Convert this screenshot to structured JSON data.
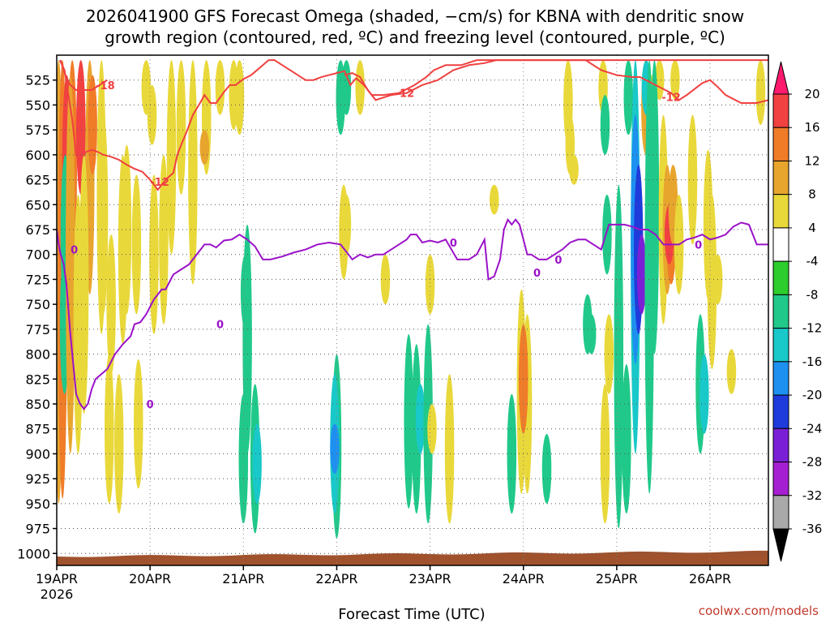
{
  "title_line1": "2026041900 GFS Forecast Omega (shaded, −cm/s) for KBNA with dendritic snow",
  "title_line2": "growth region (contoured, red, ºC) and freezing level (contoured, purple, ºC)",
  "credit": "coolwx.com/models",
  "colors": {
    "dendritic": "#f04040",
    "freezing": "#9b12c8",
    "ground": "#a0522d"
  },
  "chart_data": {
    "type": "heatmap",
    "xlabel": "Forecast Time (UTC)",
    "ylabel": "",
    "x_ticks": [
      {
        "label": "19APR",
        "sub": "2026",
        "hours": 0
      },
      {
        "label": "20APR",
        "hours": 24
      },
      {
        "label": "21APR",
        "hours": 48
      },
      {
        "label": "22APR",
        "hours": 72
      },
      {
        "label": "23APR",
        "hours": 96
      },
      {
        "label": "24APR",
        "hours": 120
      },
      {
        "label": "25APR",
        "hours": 144
      },
      {
        "label": "26APR",
        "hours": 168
      }
    ],
    "x_range_hours": [
      0,
      183
    ],
    "y_ticks": [
      525,
      550,
      575,
      600,
      625,
      650,
      675,
      700,
      725,
      750,
      775,
      800,
      825,
      850,
      875,
      900,
      925,
      950,
      975,
      1000
    ],
    "y_range_hPa": [
      500,
      1012
    ],
    "grid": true,
    "colorbar": {
      "labels": [
        "20",
        "16",
        "12",
        "8",
        "4",
        "-4",
        "-8",
        "-12",
        "-16",
        "-20",
        "-24",
        "-28",
        "-32",
        "-36"
      ],
      "colors": [
        "#ff1a6e",
        "#f24141",
        "#f07c28",
        "#e8a52e",
        "#e9d83a",
        "#ffffff",
        "#2ccd2c",
        "#20c98a",
        "#19c8c8",
        "#1e90f0",
        "#1f3bdc",
        "#7b1fd6",
        "#a61ed1",
        "#a9a9a9",
        "#000000"
      ]
    },
    "omega_regions": [
      {
        "x": 0.5,
        "p0": 505,
        "p1": 950,
        "value": 8
      },
      {
        "x": 1.5,
        "p0": 505,
        "p1": 945,
        "value": 12
      },
      {
        "x": 2.6,
        "p0": 520,
        "p1": 700,
        "value": 16
      },
      {
        "x": 4.0,
        "p0": 505,
        "p1": 720,
        "value": 12
      },
      {
        "x": 3.0,
        "p0": 640,
        "p1": 780,
        "value": -12
      },
      {
        "x": 6.2,
        "p0": 505,
        "p1": 640,
        "value": 16
      },
      {
        "x": 8.5,
        "p0": 505,
        "p1": 740,
        "value": 8
      },
      {
        "x": 9.2,
        "p0": 520,
        "p1": 620,
        "value": 12
      },
      {
        "x": 11.5,
        "p0": 505,
        "p1": 780,
        "value": 4
      },
      {
        "x": 2.2,
        "p0": 600,
        "p1": 760,
        "value": -8
      },
      {
        "x": 2.0,
        "p0": 700,
        "p1": 840,
        "value": -8
      },
      {
        "x": 3.5,
        "p0": 520,
        "p1": 900,
        "value": 8
      },
      {
        "x": 5.5,
        "p0": 640,
        "p1": 900,
        "value": 4
      },
      {
        "x": 7.0,
        "p0": 600,
        "p1": 860,
        "value": 4
      },
      {
        "x": 12.0,
        "p0": 560,
        "p1": 760,
        "value": 4
      },
      {
        "x": 14.0,
        "p0": 680,
        "p1": 820,
        "value": 4
      },
      {
        "x": 17.0,
        "p0": 600,
        "p1": 790,
        "value": 4
      },
      {
        "x": 18.0,
        "p0": 590,
        "p1": 760,
        "value": 4
      },
      {
        "x": 20.5,
        "p0": 620,
        "p1": 760,
        "value": 4
      },
      {
        "x": 23.0,
        "p0": 505,
        "p1": 560,
        "value": 4
      },
      {
        "x": 25.0,
        "p0": 620,
        "p1": 780,
        "value": 4
      },
      {
        "x": 27.5,
        "p0": 600,
        "p1": 770,
        "value": 4
      },
      {
        "x": 29.5,
        "p0": 505,
        "p1": 700,
        "value": 4
      },
      {
        "x": 32.0,
        "p0": 505,
        "p1": 640,
        "value": 4
      },
      {
        "x": 35.0,
        "p0": 505,
        "p1": 730,
        "value": 4
      },
      {
        "x": 38.5,
        "p0": 505,
        "p1": 620,
        "value": 4
      },
      {
        "x": 38.0,
        "p0": 575,
        "p1": 610,
        "value": 8
      },
      {
        "x": 42.0,
        "p0": 505,
        "p1": 560,
        "value": 4
      },
      {
        "x": 45.5,
        "p0": 505,
        "p1": 575,
        "value": 4
      },
      {
        "x": 47.0,
        "p0": 505,
        "p1": 580,
        "value": 4
      },
      {
        "x": 13.5,
        "p0": 800,
        "p1": 950,
        "value": 4
      },
      {
        "x": 16.0,
        "p0": 820,
        "p1": 960,
        "value": 4
      },
      {
        "x": 21.0,
        "p0": 805,
        "p1": 935,
        "value": 4
      },
      {
        "x": 24.5,
        "p0": 530,
        "p1": 590,
        "value": 4
      },
      {
        "x": 49.0,
        "p0": 670,
        "p1": 900,
        "value": -8
      },
      {
        "x": 48.5,
        "p0": 700,
        "p1": 775,
        "value": -8
      },
      {
        "x": 73.0,
        "p0": 505,
        "p1": 580,
        "value": -8
      },
      {
        "x": 74.5,
        "p0": 505,
        "p1": 560,
        "value": -8
      },
      {
        "x": 73.8,
        "p0": 630,
        "p1": 725,
        "value": 4
      },
      {
        "x": 74.5,
        "p0": 640,
        "p1": 700,
        "value": 4
      },
      {
        "x": 78.0,
        "p0": 505,
        "p1": 560,
        "value": 4
      },
      {
        "x": 84.5,
        "p0": 700,
        "p1": 750,
        "value": 4
      },
      {
        "x": 131.5,
        "p0": 505,
        "p1": 590,
        "value": 4
      },
      {
        "x": 132.0,
        "p0": 560,
        "p1": 620,
        "value": 4
      },
      {
        "x": 133.0,
        "p0": 600,
        "p1": 630,
        "value": 4
      },
      {
        "x": 140.5,
        "p0": 505,
        "p1": 560,
        "value": 4
      },
      {
        "x": 141.0,
        "p0": 540,
        "p1": 600,
        "value": -8
      },
      {
        "x": 147.0,
        "p0": 505,
        "p1": 580,
        "value": -8
      },
      {
        "x": 151.5,
        "p0": 505,
        "p1": 600,
        "value": 8
      },
      {
        "x": 153.0,
        "p0": 520,
        "p1": 620,
        "value": 4
      },
      {
        "x": 155.0,
        "p0": 505,
        "p1": 545,
        "value": 4
      },
      {
        "x": 159.0,
        "p0": 505,
        "p1": 545,
        "value": 4
      },
      {
        "x": 163.5,
        "p0": 560,
        "p1": 690,
        "value": 4
      },
      {
        "x": 167.5,
        "p0": 595,
        "p1": 745,
        "value": 4
      },
      {
        "x": 168.5,
        "p0": 640,
        "p1": 815,
        "value": 4
      },
      {
        "x": 170.0,
        "p0": 700,
        "p1": 750,
        "value": 4
      },
      {
        "x": 181.0,
        "p0": 505,
        "p1": 570,
        "value": 4
      },
      {
        "x": 48.0,
        "p0": 840,
        "p1": 970,
        "value": -8
      },
      {
        "x": 51.0,
        "p0": 830,
        "p1": 980,
        "value": -8
      },
      {
        "x": 51.5,
        "p0": 870,
        "p1": 950,
        "value": -12
      },
      {
        "x": 72.0,
        "p0": 800,
        "p1": 985,
        "value": -8
      },
      {
        "x": 71.5,
        "p0": 820,
        "p1": 960,
        "value": -12
      },
      {
        "x": 71.5,
        "p0": 870,
        "p1": 920,
        "value": -16
      },
      {
        "x": 90.5,
        "p0": 780,
        "p1": 955,
        "value": -8
      },
      {
        "x": 92.5,
        "p0": 790,
        "p1": 960,
        "value": -8
      },
      {
        "x": 93.5,
        "p0": 830,
        "p1": 900,
        "value": -12
      },
      {
        "x": 95.5,
        "p0": 770,
        "p1": 970,
        "value": -8
      },
      {
        "x": 96.0,
        "p0": 700,
        "p1": 760,
        "value": 4
      },
      {
        "x": 96.5,
        "p0": 850,
        "p1": 900,
        "value": 4
      },
      {
        "x": 101.0,
        "p0": 820,
        "p1": 970,
        "value": 4
      },
      {
        "x": 117.0,
        "p0": 840,
        "p1": 960,
        "value": -8
      },
      {
        "x": 119.5,
        "p0": 735,
        "p1": 940,
        "value": 4
      },
      {
        "x": 121.0,
        "p0": 760,
        "p1": 940,
        "value": 4
      },
      {
        "x": 120.0,
        "p0": 770,
        "p1": 880,
        "value": 12
      },
      {
        "x": 126.0,
        "p0": 880,
        "p1": 950,
        "value": -8
      },
      {
        "x": 112.5,
        "p0": 630,
        "p1": 660,
        "value": 4
      },
      {
        "x": 141.0,
        "p0": 830,
        "p1": 970,
        "value": 4
      },
      {
        "x": 136.5,
        "p0": 740,
        "p1": 800,
        "value": -8
      },
      {
        "x": 137.5,
        "p0": 760,
        "p1": 800,
        "value": -8
      },
      {
        "x": 142.0,
        "p0": 760,
        "p1": 840,
        "value": 4
      },
      {
        "x": 144.5,
        "p0": 630,
        "p1": 975,
        "value": -8
      },
      {
        "x": 146.5,
        "p0": 810,
        "p1": 960,
        "value": -8
      },
      {
        "x": 141.5,
        "p0": 640,
        "p1": 720,
        "value": -8
      },
      {
        "x": 148.8,
        "p0": 505,
        "p1": 900,
        "value": -12
      },
      {
        "x": 148.8,
        "p0": 560,
        "p1": 810,
        "value": -16
      },
      {
        "x": 149.6,
        "p0": 610,
        "p1": 780,
        "value": -20
      },
      {
        "x": 150.4,
        "p0": 680,
        "p1": 760,
        "value": -24
      },
      {
        "x": 151.6,
        "p0": 505,
        "p1": 560,
        "value": -12
      },
      {
        "x": 152.4,
        "p0": 505,
        "p1": 940,
        "value": -8
      },
      {
        "x": 153.7,
        "p0": 505,
        "p1": 800,
        "value": -8
      },
      {
        "x": 156.0,
        "p0": 560,
        "p1": 770,
        "value": 4
      },
      {
        "x": 157.0,
        "p0": 610,
        "p1": 740,
        "value": 8
      },
      {
        "x": 158.0,
        "p0": 640,
        "p1": 730,
        "value": 12
      },
      {
        "x": 157.5,
        "p0": 650,
        "p1": 710,
        "value": 16
      },
      {
        "x": 158.5,
        "p0": 610,
        "p1": 690,
        "value": 8
      },
      {
        "x": 160.0,
        "p0": 640,
        "p1": 740,
        "value": 4
      },
      {
        "x": 165.5,
        "p0": 760,
        "p1": 900,
        "value": -8
      },
      {
        "x": 166.5,
        "p0": 800,
        "p1": 880,
        "value": -12
      },
      {
        "x": 173.5,
        "p0": 795,
        "p1": 840,
        "value": 4
      }
    ],
    "dendritic_contours": [
      {
        "label": "-18",
        "x": [
          1.0,
          2.2,
          3.5,
          5.0,
          7.0,
          9.0,
          11.0,
          13.0
        ],
        "p": [
          505,
          520,
          530,
          535,
          535,
          535,
          530,
          525
        ],
        "label_x": 12.5,
        "label_p": 530
      },
      {
        "label": "-12",
        "x": [
          0.8,
          2.0,
          3.0,
          4.0,
          5.0,
          6.0,
          7.5,
          9.0,
          10.5,
          12.0,
          14.0,
          16.0,
          18.0,
          20.0,
          22.0,
          24.0,
          26.0,
          28.0,
          30.0,
          31.0,
          32.0,
          33.5,
          35.0,
          37.0,
          38.0,
          39.5,
          41.0,
          43.0,
          44.5,
          46.0,
          48.0,
          50.0,
          51.5,
          53.0,
          54.5,
          56.0,
          58.0,
          60.0,
          62.0,
          64.0,
          66.0,
          68.0,
          70.0,
          72.0,
          74.0,
          75.5,
          77.0,
          79.0,
          81.0,
          84.0,
          88.0,
          92.0,
          95.0,
          97.0,
          100.0,
          104.0,
          108.0,
          112.0,
          116.0,
          120.0,
          124.0,
          128.0,
          132.0,
          136.0,
          140.0,
          144.0,
          148.0,
          152.0,
          156.0,
          160.0,
          164.0,
          168.0,
          172.0,
          176.0,
          180.0,
          183.0
        ],
        "p": [
          505,
          515,
          540,
          565,
          600,
          605,
          597,
          595,
          597,
          600,
          602,
          605,
          610,
          614,
          617,
          625,
          635,
          625,
          618,
          600,
          590,
          576,
          560,
          547,
          540,
          548,
          548,
          537,
          530,
          530,
          524,
          520,
          515,
          510,
          505,
          505,
          510,
          515,
          520,
          525,
          525,
          522,
          520,
          518,
          516,
          530,
          523,
          530,
          540,
          540,
          538,
          530,
          522,
          515,
          510,
          510,
          505,
          505,
          505,
          505,
          505,
          505,
          505,
          505,
          505,
          505,
          505,
          505,
          505,
          505,
          505,
          505,
          505,
          505,
          505,
          505
        ],
        "label_x": 26.5,
        "label_p": 627
      }
    ],
    "dendritic_right": {
      "x": [
        74.0,
        76.0,
        78.0,
        80.0,
        82.0,
        86.0,
        90.0,
        94.0,
        98.0,
        102.0,
        106.0,
        110.0,
        113.0,
        116.0,
        120.0,
        124.0,
        128.0,
        132.0,
        136.0,
        140.0,
        144.0,
        148.0,
        150.0,
        154.0,
        158.0,
        160.0,
        162.0,
        166.0,
        168.0,
        170.0,
        172.0,
        176.0,
        180.0,
        183.0
      ],
      "p": [
        520,
        518,
        522,
        535,
        545,
        540,
        538,
        530,
        525,
        515,
        510,
        508,
        505,
        505,
        505,
        505,
        505,
        505,
        505,
        515,
        520,
        522,
        522,
        530,
        538,
        545,
        540,
        528,
        525,
        532,
        540,
        548,
        548,
        545
      ],
      "label": "-12",
      "label_x": 158.0,
      "label_p": 542
    },
    "dendritic_mid_label": {
      "label": "-12",
      "x": 89.5,
      "p": 538
    },
    "freezing_contour": {
      "label": "0",
      "x": [
        0.0,
        0.5,
        1.0,
        1.8,
        2.5,
        3.5,
        5.0,
        6.0,
        7.0,
        8.0,
        9.0,
        10.0,
        11.5,
        13.0,
        15.0,
        17.0,
        19.0,
        20.0,
        21.5,
        23.0,
        25.0,
        27.0,
        28.0,
        30.0,
        32.0,
        34.0,
        36.0,
        38.0,
        39.5,
        41.0,
        43.0,
        45.0,
        47.0,
        49.0,
        51.0,
        53.0,
        55.0,
        58.0,
        61.0,
        64.0,
        67.0,
        70.0,
        73.0,
        76.0,
        78.0,
        80.0,
        82.0,
        84.0,
        86.0,
        88.0,
        90.0,
        91.0,
        92.5,
        94.0,
        96.0,
        98.0,
        100.0,
        103.0,
        106.0,
        108.0,
        110.0,
        111.0,
        112.5,
        114.0,
        115.0,
        116.0,
        117.0,
        118.0,
        119.0,
        120.0,
        121.0,
        122.0,
        124.0,
        126.0,
        128.0,
        130.0,
        132.0,
        134.0,
        136.0,
        138.0,
        140.0,
        142.0,
        144.0,
        146.0,
        148.0,
        150.0,
        152.0,
        154.0,
        156.0,
        158.0,
        160.0,
        162.0,
        164.0,
        166.0,
        168.0,
        170.0,
        172.0,
        174.0,
        176.0,
        178.0,
        180.0,
        183.0
      ],
      "p": [
        675,
        690,
        700,
        710,
        730,
        780,
        840,
        850,
        855,
        850,
        835,
        825,
        820,
        815,
        800,
        790,
        782,
        770,
        768,
        760,
        745,
        735,
        735,
        720,
        715,
        710,
        700,
        690,
        690,
        693,
        686,
        685,
        680,
        685,
        692,
        705,
        705,
        702,
        698,
        695,
        690,
        688,
        690,
        705,
        700,
        703,
        700,
        700,
        695,
        690,
        685,
        680,
        680,
        688,
        686,
        688,
        685,
        705,
        705,
        700,
        685,
        725,
        722,
        705,
        675,
        665,
        670,
        665,
        670,
        685,
        700,
        700,
        705,
        705,
        700,
        695,
        688,
        685,
        685,
        690,
        695,
        670,
        670,
        670,
        672,
        675,
        675,
        680,
        690,
        690,
        690,
        685,
        683,
        680,
        685,
        683,
        680,
        672,
        668,
        670,
        690,
        690
      ]
    },
    "freezing_labels": [
      {
        "x": 4.5,
        "p": 695
      },
      {
        "x": 42.0,
        "p": 770
      },
      {
        "x": 24.0,
        "p": 850
      },
      {
        "x": 102.0,
        "p": 688
      },
      {
        "x": 129.0,
        "p": 705
      },
      {
        "x": 165.0,
        "p": 690
      },
      {
        "x": 123.5,
        "p": 718
      }
    ]
  }
}
